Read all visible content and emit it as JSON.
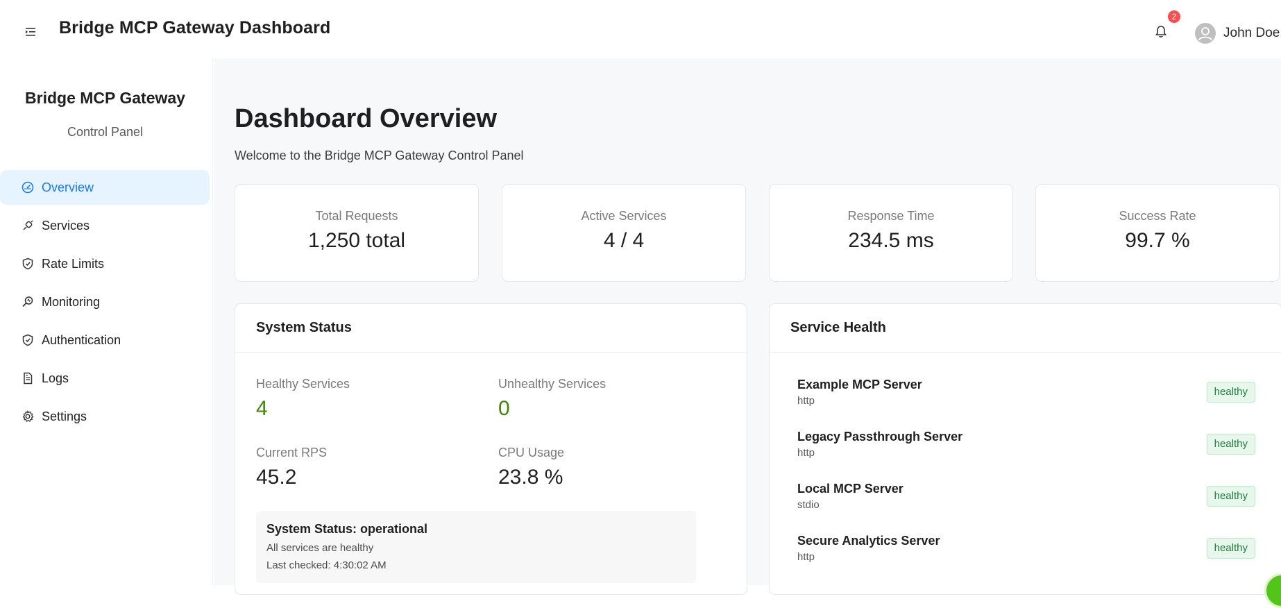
{
  "header": {
    "title": "Bridge MCP Gateway Dashboard",
    "notification_count": "2",
    "user_name": "John Doe"
  },
  "sidebar": {
    "brand_title": "Bridge MCP Gateway",
    "brand_subtitle": "Control Panel",
    "items": [
      {
        "label": "Overview",
        "icon": "dashboard-icon",
        "active": true
      },
      {
        "label": "Services",
        "icon": "api-icon"
      },
      {
        "label": "Rate Limits",
        "icon": "shield-icon"
      },
      {
        "label": "Monitoring",
        "icon": "monitor-search-icon"
      },
      {
        "label": "Authentication",
        "icon": "safety-shield-icon"
      },
      {
        "label": "Logs",
        "icon": "file-text-icon"
      },
      {
        "label": "Settings",
        "icon": "gear-icon"
      }
    ]
  },
  "main": {
    "title": "Dashboard Overview",
    "subtitle": "Welcome to the Bridge MCP Gateway Control Panel",
    "stats": [
      {
        "label": "Total Requests",
        "value": "1,250 total"
      },
      {
        "label": "Active Services",
        "value": "4 / 4"
      },
      {
        "label": "Response Time",
        "value": "234.5 ms"
      },
      {
        "label": "Success Rate",
        "value": "99.7 %"
      }
    ],
    "system_status": {
      "title": "System Status",
      "healthy_label": "Healthy Services",
      "healthy_value": "4",
      "unhealthy_label": "Unhealthy Services",
      "unhealthy_value": "0",
      "rps_label": "Current RPS",
      "rps_value": "45.2",
      "cpu_label": "CPU Usage",
      "cpu_value": "23.8 %",
      "status_title": "System Status: operational",
      "status_detail": "All services are healthy",
      "last_checked": "Last checked: 4:30:02 AM"
    },
    "service_health": {
      "title": "Service Health",
      "services": [
        {
          "name": "Example MCP Server",
          "type": "http",
          "status": "healthy"
        },
        {
          "name": "Legacy Passthrough Server",
          "type": "http",
          "status": "healthy"
        },
        {
          "name": "Local MCP Server",
          "type": "stdio",
          "status": "healthy"
        },
        {
          "name": "Secure Analytics Server",
          "type": "http",
          "status": "healthy"
        }
      ]
    }
  },
  "colors": {
    "accent": "#1677ff",
    "active_bg": "#e6f4ff",
    "positive": "#3f8600",
    "badge": "#ff4d4f",
    "healthy_bg": "#e8f7ec"
  }
}
